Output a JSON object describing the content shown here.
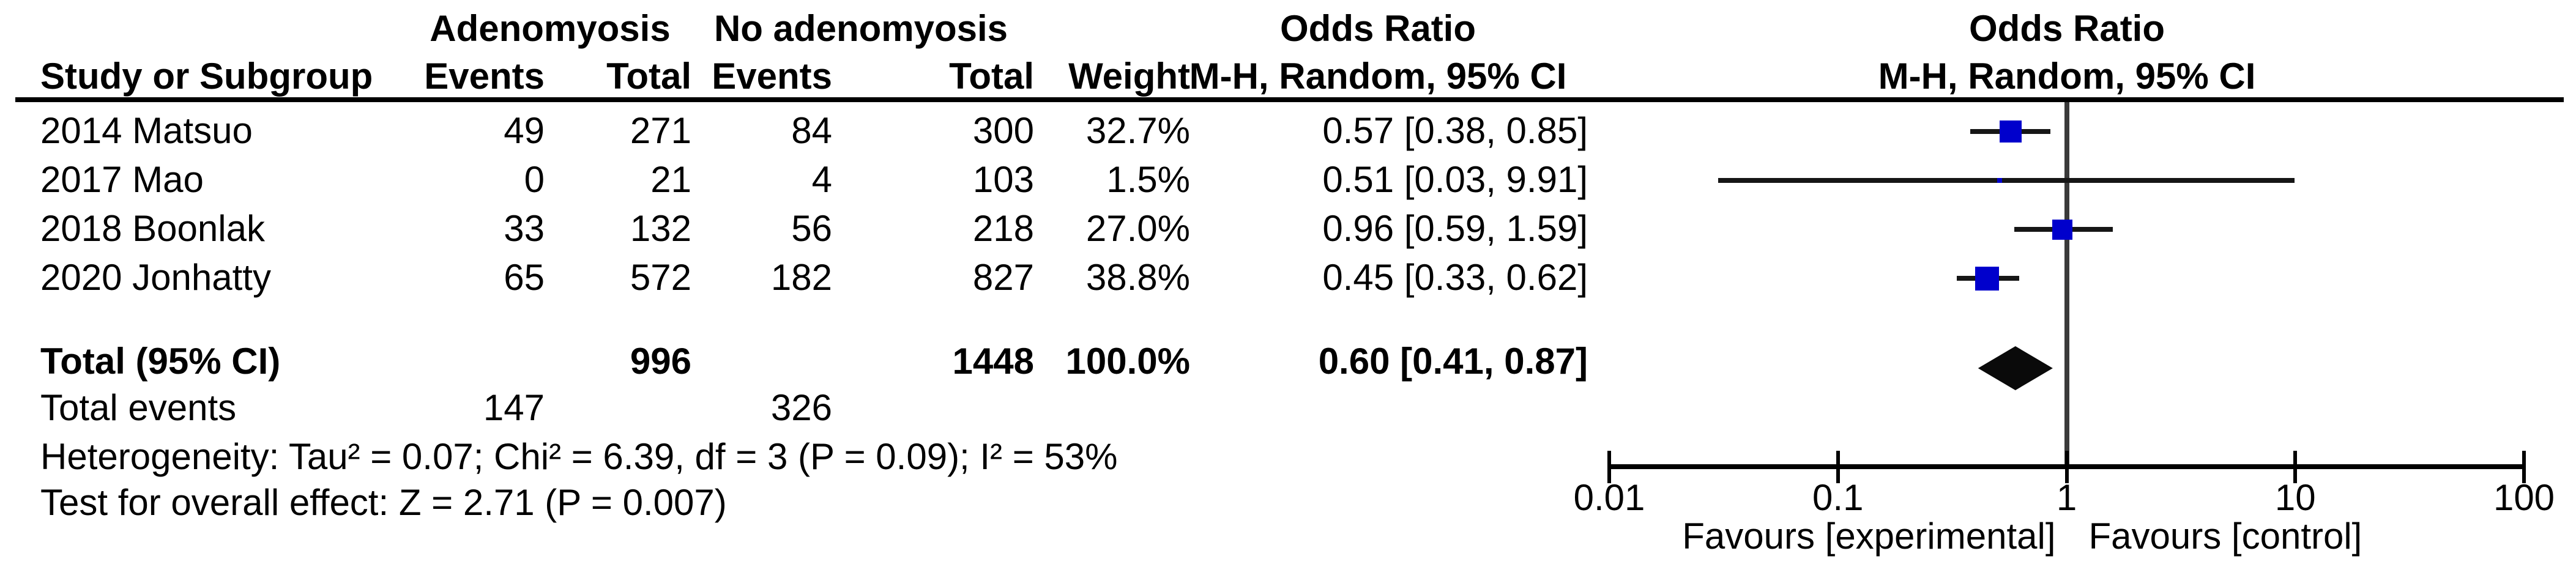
{
  "table": {
    "group1_header": "Adenomyosis",
    "group2_header": "No adenomyosis",
    "or_text_header_line1": "Odds Ratio",
    "or_text_header_line2": "M-H, Random, 95% CI",
    "plot_header_line1": "Odds Ratio",
    "plot_header_line2": "M-H, Random, 95% CI",
    "col_headers": {
      "study": "Study or Subgroup",
      "events1": "Events",
      "total1": "Total",
      "events2": "Events",
      "total2": "Total",
      "weight": "Weight"
    },
    "rows": [
      {
        "study": "2014 Matsuo",
        "events1": "49",
        "total1": "271",
        "events2": "84",
        "total2": "300",
        "weight": "32.7%",
        "or_ci": "0.57 [0.38, 0.85]"
      },
      {
        "study": "2017 Mao",
        "events1": "0",
        "total1": "21",
        "events2": "4",
        "total2": "103",
        "weight": "1.5%",
        "or_ci": "0.51 [0.03, 9.91]"
      },
      {
        "study": "2018 Boonlak",
        "events1": "33",
        "total1": "132",
        "events2": "56",
        "total2": "218",
        "weight": "27.0%",
        "or_ci": "0.96 [0.59, 1.59]"
      },
      {
        "study": "2020 Jonhatty",
        "events1": "65",
        "total1": "572",
        "events2": "182",
        "total2": "827",
        "weight": "38.8%",
        "or_ci": "0.45 [0.33, 0.62]"
      }
    ],
    "total_row": {
      "label": "Total (95% CI)",
      "total1": "996",
      "total2": "1448",
      "weight": "100.0%",
      "or_ci": "0.60 [0.41, 0.87]"
    },
    "total_events": {
      "label": "Total events",
      "events1": "147",
      "events2": "326"
    },
    "heterogeneity": "Heterogeneity: Tau² = 0.07; Chi² = 6.39, df = 3 (P = 0.09); I² = 53%",
    "overall_effect": "Test for overall effect: Z = 2.71 (P = 0.007)"
  },
  "chart_data": {
    "type": "forest",
    "x_scale": "log10",
    "axis": {
      "min": 0.01,
      "max": 100,
      "null_line": 1,
      "ticks": [
        "0.01",
        "0.1",
        "1",
        "10",
        "100"
      ]
    },
    "axis_labels": {
      "left": "Favours [experimental]",
      "right": "Favours [control]"
    },
    "studies": [
      {
        "name": "2014 Matsuo",
        "or": 0.57,
        "ci_low": 0.38,
        "ci_high": 0.85,
        "weight_pct": 32.7
      },
      {
        "name": "2017 Mao",
        "or": 0.51,
        "ci_low": 0.03,
        "ci_high": 9.91,
        "weight_pct": 1.5
      },
      {
        "name": "2018 Boonlak",
        "or": 0.96,
        "ci_low": 0.59,
        "ci_high": 1.59,
        "weight_pct": 27.0
      },
      {
        "name": "2020 Jonhatty",
        "or": 0.45,
        "ci_low": 0.33,
        "ci_high": 0.62,
        "weight_pct": 38.8
      }
    ],
    "total": {
      "or": 0.6,
      "ci_low": 0.41,
      "ci_high": 0.87
    },
    "effect_label": "Odds Ratio",
    "model_label": "M-H, Random, 95% CI",
    "colors": {
      "marker": "#0000cc",
      "ci_line": "#161616",
      "null_line": "#3a3a3a",
      "diamond": "#0a0a0a"
    }
  }
}
